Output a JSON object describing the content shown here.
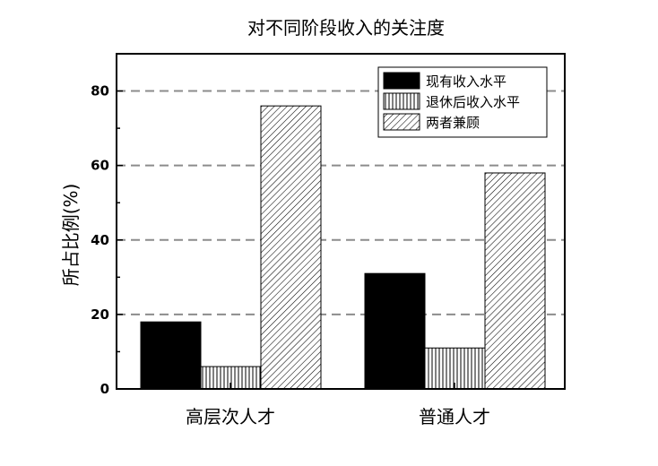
{
  "chart_data": {
    "type": "bar",
    "title": "对不同阶段收入的关注度",
    "xlabel": "",
    "ylabel": "所占比例(%)",
    "categories": [
      "高层次人才",
      "普通人才"
    ],
    "series": [
      {
        "name": "现有收入水平",
        "values": [
          18,
          31
        ],
        "pattern": "solid"
      },
      {
        "name": "退休后收入水平",
        "values": [
          6,
          11
        ],
        "pattern": "vertical"
      },
      {
        "name": "两者兼顾",
        "values": [
          76,
          58
        ],
        "pattern": "diagonal"
      }
    ],
    "ylim": [
      0,
      90
    ],
    "yticks": [
      0,
      20,
      40,
      60,
      80
    ],
    "yticks_labels": [
      "0",
      "20",
      "40",
      "60",
      "80"
    ],
    "grid": "horizontal-dashed",
    "legend_position": "top-right",
    "colors": {
      "bar": "#000000",
      "grid": "#8c8c8c",
      "background": "#ffffff"
    }
  }
}
